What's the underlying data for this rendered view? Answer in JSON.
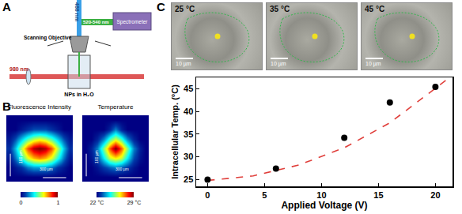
{
  "chart_data": [
    {
      "type": "heatmap",
      "title": "Fluorescence Intensity",
      "cells": [
        [
          0,
          0,
          0,
          0,
          0,
          0,
          0,
          0,
          0,
          0,
          0
        ],
        [
          0,
          0,
          0.05,
          0.1,
          0.15,
          0.15,
          0.15,
          0.1,
          0.05,
          0,
          0
        ],
        [
          0.05,
          0.15,
          0.3,
          0.45,
          0.55,
          0.6,
          0.55,
          0.45,
          0.3,
          0.15,
          0.05
        ],
        [
          0.1,
          0.3,
          0.55,
          0.8,
          0.95,
          1,
          0.95,
          0.8,
          0.55,
          0.3,
          0.1
        ],
        [
          0.05,
          0.2,
          0.4,
          0.6,
          0.7,
          0.75,
          0.7,
          0.6,
          0.4,
          0.2,
          0.05
        ],
        [
          0,
          0.05,
          0.1,
          0.2,
          0.25,
          0.25,
          0.25,
          0.2,
          0.1,
          0.05,
          0
        ],
        [
          0,
          0,
          0,
          0,
          0,
          0,
          0,
          0,
          0,
          0,
          0
        ]
      ],
      "colorbar_range": [
        0,
        1
      ],
      "colorbar_ticks": [
        0,
        1
      ],
      "tick_labels": false,
      "scale_bars": [
        "100 µm",
        "300 µm"
      ]
    },
    {
      "type": "heatmap",
      "title": "Temperature",
      "cells": [
        [
          22,
          22,
          22,
          22,
          22,
          22,
          22,
          22,
          22,
          22,
          22
        ],
        [
          22,
          22,
          22,
          22,
          22.5,
          23.5,
          22.5,
          22,
          22,
          22,
          22
        ],
        [
          22,
          22,
          22.5,
          23.5,
          25,
          26,
          25,
          23.5,
          22.5,
          22,
          22
        ],
        [
          22,
          22.5,
          23.5,
          25.5,
          27.5,
          29,
          27.5,
          25.5,
          23.5,
          22.5,
          22
        ],
        [
          22,
          22.3,
          23,
          24.5,
          26,
          26.5,
          26,
          24.5,
          23,
          22.3,
          22
        ],
        [
          22,
          22,
          22.3,
          22.8,
          23.2,
          23.5,
          23.2,
          22.8,
          22.3,
          22,
          22
        ],
        [
          22,
          22,
          22,
          22,
          22,
          22,
          22,
          22,
          22,
          22,
          22
        ]
      ],
      "colorbar_range": [
        22,
        29
      ],
      "colorbar_ticks": [
        {
          "value": 22,
          "label": "22 °C"
        },
        {
          "value": 29,
          "label": "29 °C"
        }
      ],
      "tick_labels": false,
      "scale_bars": [
        "100 µm",
        "300 µm"
      ]
    },
    {
      "type": "scatter",
      "xlabel": "Applied Voltage (V)",
      "ylabel": "Intracellular Temp. (°C)",
      "xlim": [
        -1,
        21.5
      ],
      "xticks": [
        0,
        5,
        10,
        15,
        20
      ],
      "ylim": [
        23.5,
        47.5
      ],
      "yticks": [
        25,
        30,
        35,
        40,
        45
      ],
      "grid": false,
      "series": [
        {
          "type": "line",
          "line_style": "dashed",
          "color": "#e0403c",
          "x": [
            0,
            4,
            8,
            12,
            16,
            20,
            21
          ],
          "values": [
            24.8,
            25.8,
            28.2,
            32,
            37.5,
            45,
            47
          ]
        },
        {
          "type": "scatter",
          "marker": "circle",
          "color": "#000000",
          "x": [
            0,
            6,
            12,
            16,
            20
          ],
          "values": [
            25,
            27.4,
            34.2,
            42,
            45.4
          ]
        }
      ]
    }
  ],
  "panel_labels": [
    "A",
    "B",
    "C"
  ],
  "setup_diagram": {
    "beams": [
      "488 nm",
      "520-540 nm",
      "980 nm"
    ],
    "spectrometer": "Spectrometer",
    "objective": "Scanning Objective",
    "sample": "NPs in H₂O"
  },
  "micrographs": [
    {
      "label": "25 °C",
      "scale_bar": "10 µm"
    },
    {
      "label": "35 °C",
      "scale_bar": "10 µm"
    },
    {
      "label": "45 °C",
      "scale_bar": "10 µm"
    }
  ]
}
